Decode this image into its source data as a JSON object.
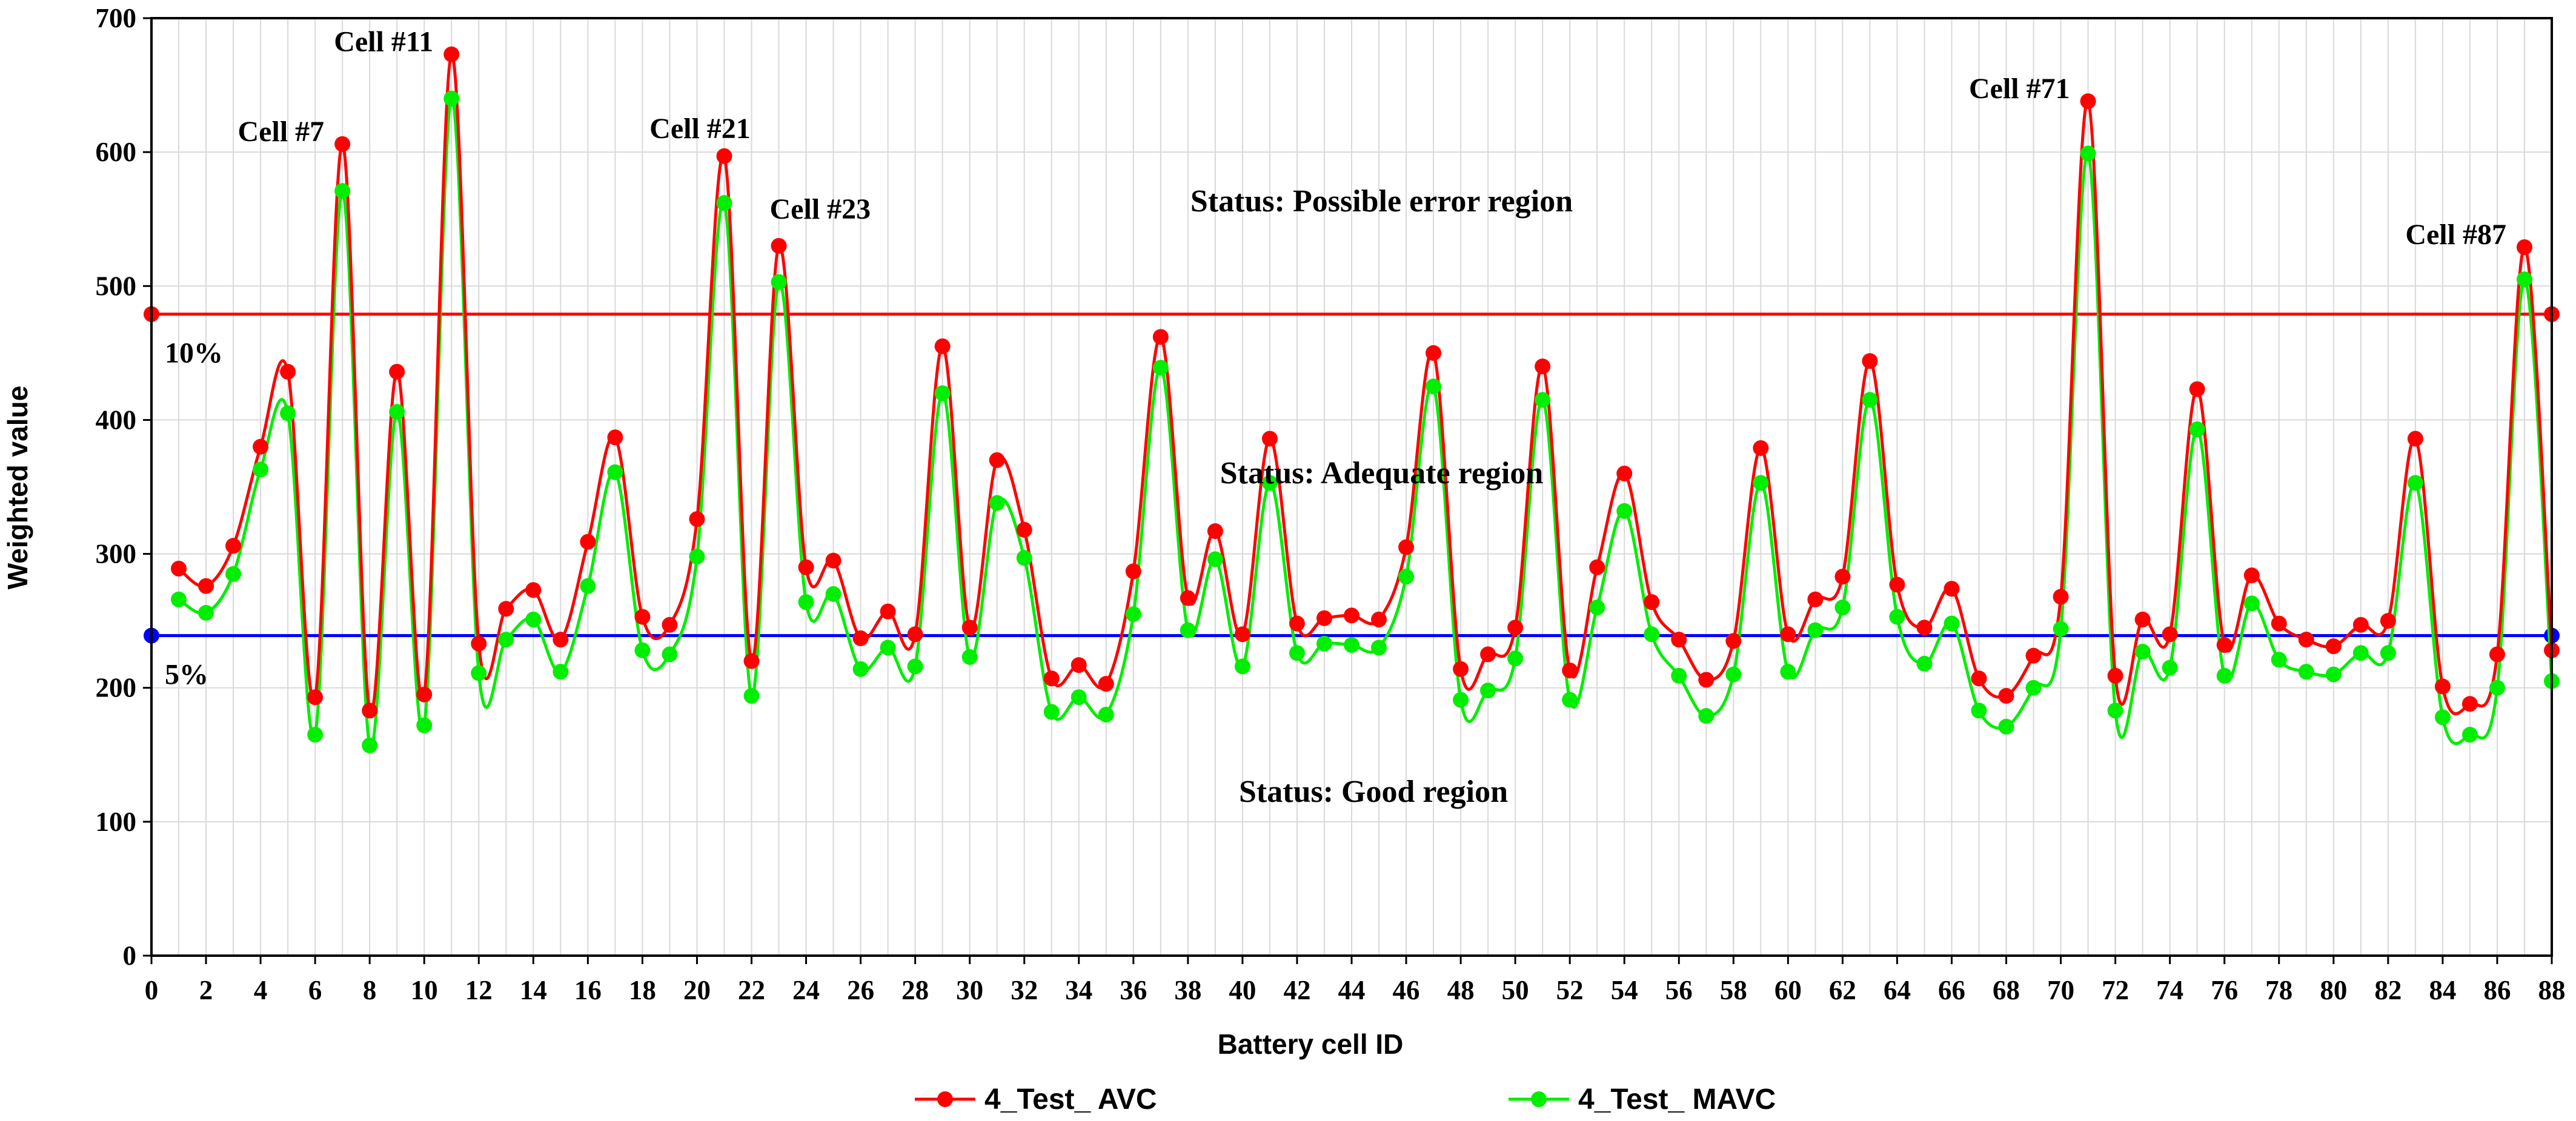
{
  "chart_data": {
    "type": "line",
    "xlabel": "Battery cell ID",
    "ylabel": "Weighted value",
    "xlim": [
      0,
      88
    ],
    "ylim": [
      0,
      700
    ],
    "x_ticks": [
      0,
      2,
      4,
      6,
      8,
      10,
      12,
      14,
      16,
      18,
      20,
      22,
      24,
      26,
      28,
      30,
      32,
      34,
      36,
      38,
      40,
      42,
      44,
      46,
      48,
      50,
      52,
      54,
      56,
      58,
      60,
      62,
      64,
      66,
      68,
      70,
      72,
      74,
      76,
      78,
      80,
      82,
      84,
      86,
      88
    ],
    "y_ticks": [
      0,
      100,
      200,
      300,
      400,
      500,
      600,
      700
    ],
    "grid": true,
    "legend_position": "bottom",
    "x": [
      1,
      2,
      3,
      4,
      5,
      6,
      7,
      8,
      9,
      10,
      11,
      12,
      13,
      14,
      15,
      16,
      17,
      18,
      19,
      20,
      21,
      22,
      23,
      24,
      25,
      26,
      27,
      28,
      29,
      30,
      31,
      32,
      33,
      34,
      35,
      36,
      37,
      38,
      39,
      40,
      41,
      42,
      43,
      44,
      45,
      46,
      47,
      48,
      49,
      50,
      51,
      52,
      53,
      54,
      55,
      56,
      57,
      58,
      59,
      60,
      61,
      62,
      63,
      64,
      65,
      66,
      67,
      68,
      69,
      70,
      71,
      72,
      73,
      74,
      75,
      76,
      77,
      78,
      79,
      80,
      81,
      82,
      83,
      84,
      85,
      86,
      87,
      88
    ],
    "series": [
      {
        "name": "4_Test_ AVC",
        "color": "#ff0000",
        "values": [
          289,
          276,
          306,
          380,
          436,
          193,
          606,
          183,
          436,
          195,
          673,
          233,
          259,
          273,
          236,
          309,
          387,
          253,
          247,
          326,
          597,
          220,
          530,
          290,
          295,
          237,
          257,
          240,
          455,
          245,
          370,
          318,
          207,
          217,
          203,
          287,
          462,
          267,
          317,
          240,
          386,
          248,
          252,
          254,
          251,
          305,
          450,
          214,
          225,
          245,
          440,
          213,
          290,
          360,
          264,
          236,
          206,
          235,
          379,
          240,
          266,
          283,
          444,
          277,
          245,
          274,
          207,
          194,
          224,
          268,
          638,
          209,
          251,
          240,
          423,
          232,
          284,
          248,
          236,
          231,
          247,
          250,
          386,
          201,
          188,
          225,
          529,
          228
        ]
      },
      {
        "name": "4_Test_ MAVC",
        "color": "#00ee00",
        "values": [
          266,
          256,
          285,
          363,
          405,
          165,
          571,
          157,
          406,
          172,
          640,
          211,
          236,
          251,
          212,
          276,
          361,
          228,
          225,
          298,
          562,
          194,
          503,
          264,
          270,
          214,
          230,
          216,
          420,
          223,
          338,
          297,
          182,
          193,
          180,
          255,
          439,
          243,
          296,
          216,
          353,
          226,
          233,
          232,
          230,
          283,
          425,
          191,
          198,
          222,
          415,
          191,
          260,
          332,
          240,
          209,
          179,
          210,
          353,
          212,
          243,
          260,
          415,
          253,
          218,
          248,
          183,
          171,
          200,
          244,
          599,
          183,
          227,
          215,
          393,
          209,
          263,
          221,
          212,
          210,
          226,
          226,
          353,
          178,
          165,
          200,
          505,
          205
        ]
      }
    ],
    "threshold_lines": [
      {
        "label": "10%",
        "value": 479,
        "color": "#ff0000"
      },
      {
        "label": "5%",
        "value": 239,
        "color": "#0000ff"
      }
    ],
    "cell_annotations": [
      {
        "label": "Cell #7",
        "cell": 7
      },
      {
        "label": "Cell #11",
        "cell": 11
      },
      {
        "label": "Cell #21",
        "cell": 21
      },
      {
        "label": "Cell #23",
        "cell": 23
      },
      {
        "label": "Cell #71",
        "cell": 71
      },
      {
        "label": "Cell #87",
        "cell": 87
      }
    ],
    "region_labels": [
      {
        "label": "Status: Possible error region",
        "x": 45.1,
        "y": 563
      },
      {
        "label": "Status: Adequate region",
        "x": 45.1,
        "y": 360
      },
      {
        "label": "Status: Good region",
        "x": 44.8,
        "y": 122
      }
    ]
  }
}
